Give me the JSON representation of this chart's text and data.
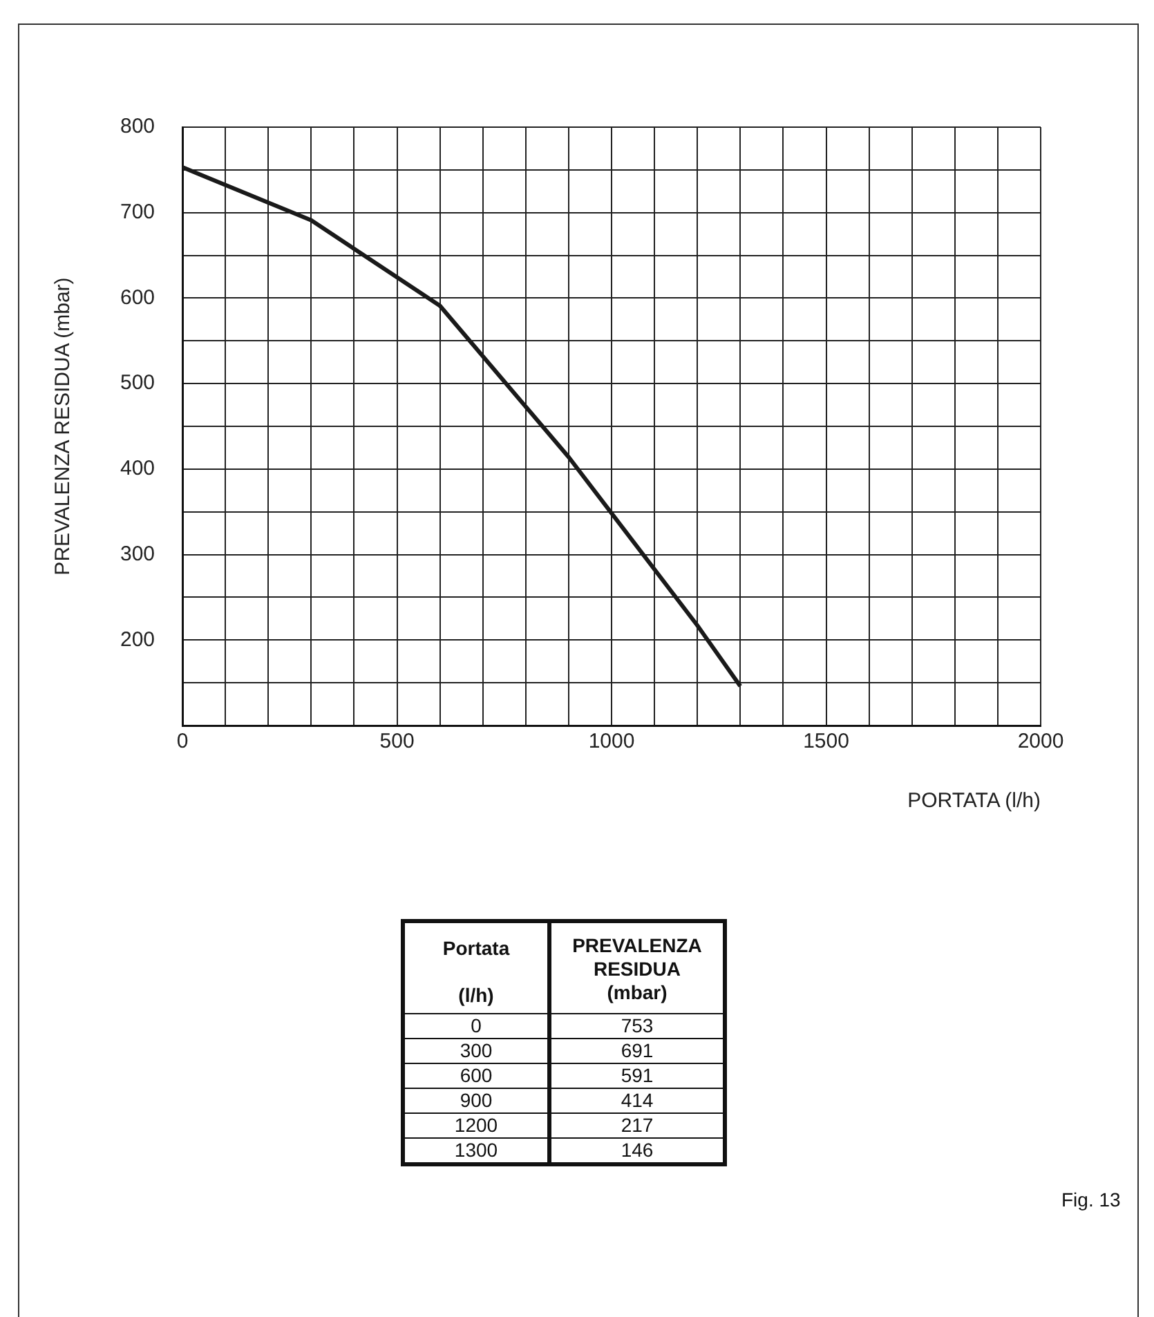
{
  "chart_data": {
    "type": "line",
    "xlabel": "PORTATA (l/h)",
    "ylabel": "PREVALENZA RESIDUA (mbar)",
    "x": [
      0,
      300,
      600,
      900,
      1200,
      1300
    ],
    "series": [
      {
        "color": "#1a1a1a",
        "values": [
          753,
          691,
          591,
          414,
          217,
          146
        ]
      }
    ],
    "xlim": [
      0,
      2000
    ],
    "ylim": [
      100,
      800
    ],
    "xticks": [
      {
        "value": 0,
        "label": "0"
      },
      {
        "value": 100,
        "label": null
      },
      {
        "value": 200,
        "label": null
      },
      {
        "value": 300,
        "label": null
      },
      {
        "value": 400,
        "label": null
      },
      500,
      {
        "value": 600,
        "label": null
      },
      {
        "value": 700,
        "label": null
      },
      {
        "value": 800,
        "label": null
      },
      {
        "value": 900,
        "label": null
      },
      1000,
      {
        "value": 1100,
        "label": null
      },
      {
        "value": 1200,
        "label": null
      },
      {
        "value": 1300,
        "label": null
      },
      {
        "value": 1400,
        "label": null
      },
      1500,
      {
        "value": 1600,
        "label": null
      },
      {
        "value": 1700,
        "label": null
      },
      {
        "value": 1800,
        "label": null
      },
      {
        "value": 1900,
        "label": null
      },
      2000
    ],
    "yticks": [
      {
        "value": 150,
        "label": null
      },
      200,
      {
        "value": 250,
        "label": null
      },
      300,
      {
        "value": 350,
        "label": null
      },
      400,
      {
        "value": 450,
        "label": null
      },
      500,
      {
        "value": 550,
        "label": null
      },
      600,
      {
        "value": 650,
        "label": null
      },
      700,
      {
        "value": 750,
        "label": null
      },
      800
    ],
    "grid": true,
    "legend": false,
    "marker": "none",
    "line_style": "solid",
    "annotations": [
      "Portata",
      "(l/h)",
      "PREVALENZA",
      "RESIDUA",
      "(mbar)",
      "0",
      "753",
      "300",
      "691",
      "600",
      "591",
      "900",
      "414",
      "1200",
      "217",
      "1300",
      "146",
      "Fig. 13"
    ]
  }
}
